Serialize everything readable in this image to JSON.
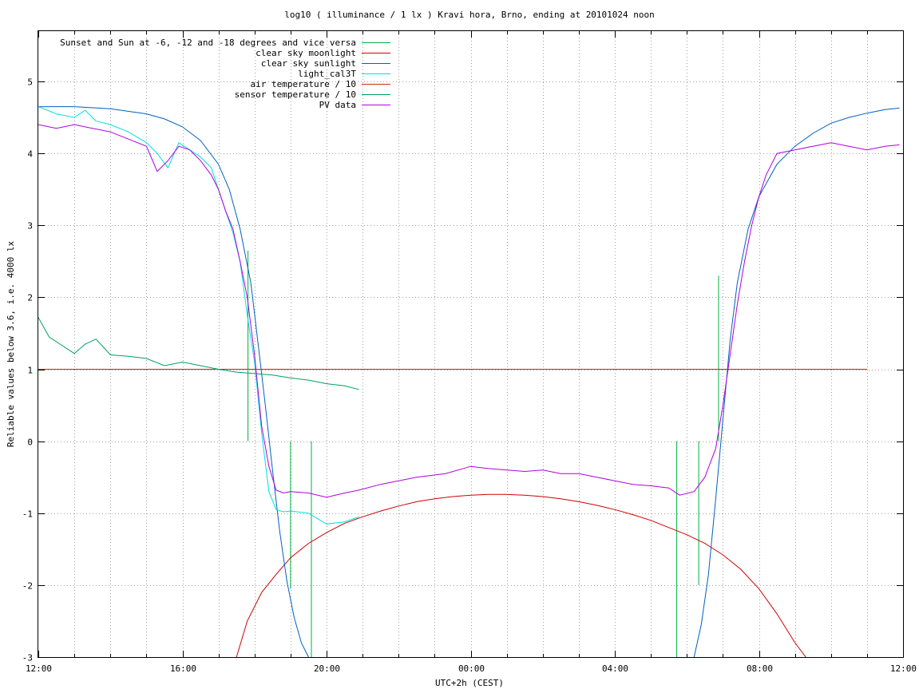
{
  "chart_data": {
    "type": "line",
    "title": "log10 ( illuminance / 1 lx ) Kravi hora, Brno, ending at 20101024 noon",
    "xlabel": "UTC+2h (CEST)",
    "ylabel": "Reliable values below 3.6, i.e. 4000 lx",
    "xlim": [
      12,
      36
    ],
    "ylim": [
      -3,
      5.7
    ],
    "xticks": [
      {
        "value": 12,
        "label": "12:00"
      },
      {
        "value": 16,
        "label": "16:00"
      },
      {
        "value": 20,
        "label": "20:00"
      },
      {
        "value": 24,
        "label": "00:00"
      },
      {
        "value": 28,
        "label": "04:00"
      },
      {
        "value": 32,
        "label": "08:00"
      },
      {
        "value": 36,
        "label": "12:00"
      }
    ],
    "yticks": [
      -3,
      -2,
      -1,
      0,
      1,
      2,
      3,
      4,
      5
    ],
    "grid": true,
    "legend_position": "top-left",
    "series": [
      {
        "name": "Sunset and Sun at -6, -12 and -18 degrees and vice versa",
        "color": "#00b040",
        "style": "impulses",
        "points": [
          [
            17.82,
            2.65
          ],
          [
            19.0,
            -2.05
          ],
          [
            19.58,
            -3.0
          ],
          [
            29.72,
            -3.0
          ],
          [
            30.33,
            -2.0
          ],
          [
            30.88,
            2.3
          ]
        ]
      },
      {
        "name": "clear sky moonlight",
        "color": "#d00000",
        "x": [
          17.5,
          17.8,
          18.2,
          18.6,
          19.0,
          19.5,
          20.0,
          20.5,
          21.0,
          21.5,
          22.0,
          22.5,
          23.0,
          23.5,
          24.0,
          24.5,
          25.0,
          25.5,
          26.0,
          26.5,
          27.0,
          27.5,
          28.0,
          28.5,
          29.0,
          29.5,
          30.0,
          30.5,
          31.0,
          31.5,
          32.0,
          32.5,
          33.0,
          33.3
        ],
        "y": [
          -3.0,
          -2.5,
          -2.1,
          -1.85,
          -1.62,
          -1.42,
          -1.27,
          -1.14,
          -1.05,
          -0.97,
          -0.9,
          -0.84,
          -0.8,
          -0.77,
          -0.75,
          -0.74,
          -0.74,
          -0.75,
          -0.77,
          -0.8,
          -0.84,
          -0.89,
          -0.95,
          -1.02,
          -1.1,
          -1.2,
          -1.3,
          -1.42,
          -1.58,
          -1.78,
          -2.05,
          -2.4,
          -2.8,
          -3.0
        ]
      },
      {
        "name": "clear sky sunlight",
        "color": "#0060c0",
        "x": [
          12.0,
          13.0,
          14.0,
          15.0,
          15.5,
          16.0,
          16.5,
          17.0,
          17.3,
          17.6,
          17.9,
          18.1,
          18.3,
          18.5,
          18.7,
          18.9,
          19.1,
          19.3,
          19.5,
          19.7,
          30.0,
          30.2,
          30.4,
          30.6,
          30.8,
          31.0,
          31.2,
          31.4,
          31.7,
          32.0,
          32.5,
          33.0,
          33.5,
          34.0,
          34.5,
          35.0,
          35.5,
          35.9
        ],
        "y": [
          4.65,
          4.65,
          4.62,
          4.55,
          4.48,
          4.37,
          4.18,
          3.85,
          3.5,
          2.95,
          2.2,
          1.35,
          0.5,
          -0.4,
          -1.25,
          -1.95,
          -2.45,
          -2.8,
          -3.0,
          -3.3,
          -3.3,
          -3.0,
          -2.55,
          -1.85,
          -0.8,
          0.3,
          1.4,
          2.2,
          2.95,
          3.4,
          3.85,
          4.1,
          4.28,
          4.42,
          4.5,
          4.56,
          4.61,
          4.63
        ]
      },
      {
        "name": "light_cal3T",
        "color": "#00e0e0",
        "x": [
          12.0,
          12.5,
          13.0,
          13.3,
          13.6,
          14.0,
          14.5,
          15.0,
          15.3,
          15.6,
          15.9,
          16.2,
          16.5,
          16.8,
          17.0,
          17.2,
          17.4,
          17.6,
          17.8,
          18.0,
          18.2,
          18.4,
          18.6,
          18.8,
          19.0,
          19.5,
          20.0,
          20.5,
          20.9
        ],
        "y": [
          4.65,
          4.55,
          4.5,
          4.6,
          4.45,
          4.4,
          4.3,
          4.15,
          4.0,
          3.8,
          4.15,
          4.05,
          3.95,
          3.8,
          3.5,
          3.2,
          2.9,
          2.5,
          1.75,
          1.1,
          0.1,
          -0.7,
          -0.95,
          -0.98,
          -0.97,
          -1.0,
          -1.15,
          -1.12,
          -1.05
        ]
      },
      {
        "name": "air temperature / 10",
        "color": "#c03000",
        "x": [
          12.0,
          35.0
        ],
        "y": [
          1.0,
          1.0
        ]
      },
      {
        "name": "sensor temperature / 10",
        "color": "#00a060",
        "x": [
          12.0,
          12.3,
          12.6,
          13.0,
          13.3,
          13.6,
          14.0,
          14.5,
          15.0,
          15.5,
          16.0,
          16.5,
          17.0,
          17.5,
          18.0,
          18.5,
          19.0,
          19.5,
          20.0,
          20.5,
          20.9
        ],
        "y": [
          1.72,
          1.45,
          1.35,
          1.22,
          1.35,
          1.42,
          1.2,
          1.18,
          1.15,
          1.05,
          1.1,
          1.05,
          1.0,
          0.96,
          0.94,
          0.92,
          0.88,
          0.85,
          0.8,
          0.77,
          0.72
        ]
      },
      {
        "name": "PV data",
        "color": "#b000e0",
        "x": [
          12.0,
          12.5,
          13.0,
          13.5,
          14.0,
          14.5,
          15.0,
          15.3,
          15.6,
          15.9,
          16.2,
          16.5,
          16.8,
          17.0,
          17.2,
          17.4,
          17.6,
          17.8,
          18.0,
          18.2,
          18.4,
          18.6,
          18.8,
          19.0,
          19.5,
          20.0,
          20.5,
          20.9,
          21.5,
          22.5,
          23.3,
          24.0,
          24.5,
          25.0,
          25.5,
          26.0,
          26.5,
          27.0,
          27.5,
          28.0,
          28.5,
          29.0,
          29.5,
          29.8,
          30.2,
          30.5,
          30.8,
          31.0,
          31.2,
          31.4,
          31.6,
          31.8,
          32.0,
          32.2,
          32.5,
          33.0,
          33.5,
          34.0,
          34.5,
          35.0,
          35.5,
          35.9
        ],
        "y": [
          4.4,
          4.35,
          4.4,
          4.35,
          4.3,
          4.2,
          4.1,
          3.75,
          3.9,
          4.1,
          4.05,
          3.9,
          3.7,
          3.5,
          3.2,
          2.95,
          2.5,
          2.0,
          1.2,
          0.2,
          -0.35,
          -0.68,
          -0.72,
          -0.7,
          -0.72,
          -0.78,
          -0.72,
          -0.68,
          -0.6,
          -0.5,
          -0.45,
          -0.35,
          -0.38,
          -0.4,
          -0.42,
          -0.4,
          -0.45,
          -0.45,
          -0.5,
          -0.55,
          -0.6,
          -0.62,
          -0.65,
          -0.75,
          -0.7,
          -0.5,
          -0.1,
          0.5,
          1.2,
          1.9,
          2.5,
          3.0,
          3.4,
          3.7,
          4.0,
          4.05,
          4.1,
          4.15,
          4.1,
          4.05,
          4.1,
          4.12
        ]
      }
    ]
  }
}
